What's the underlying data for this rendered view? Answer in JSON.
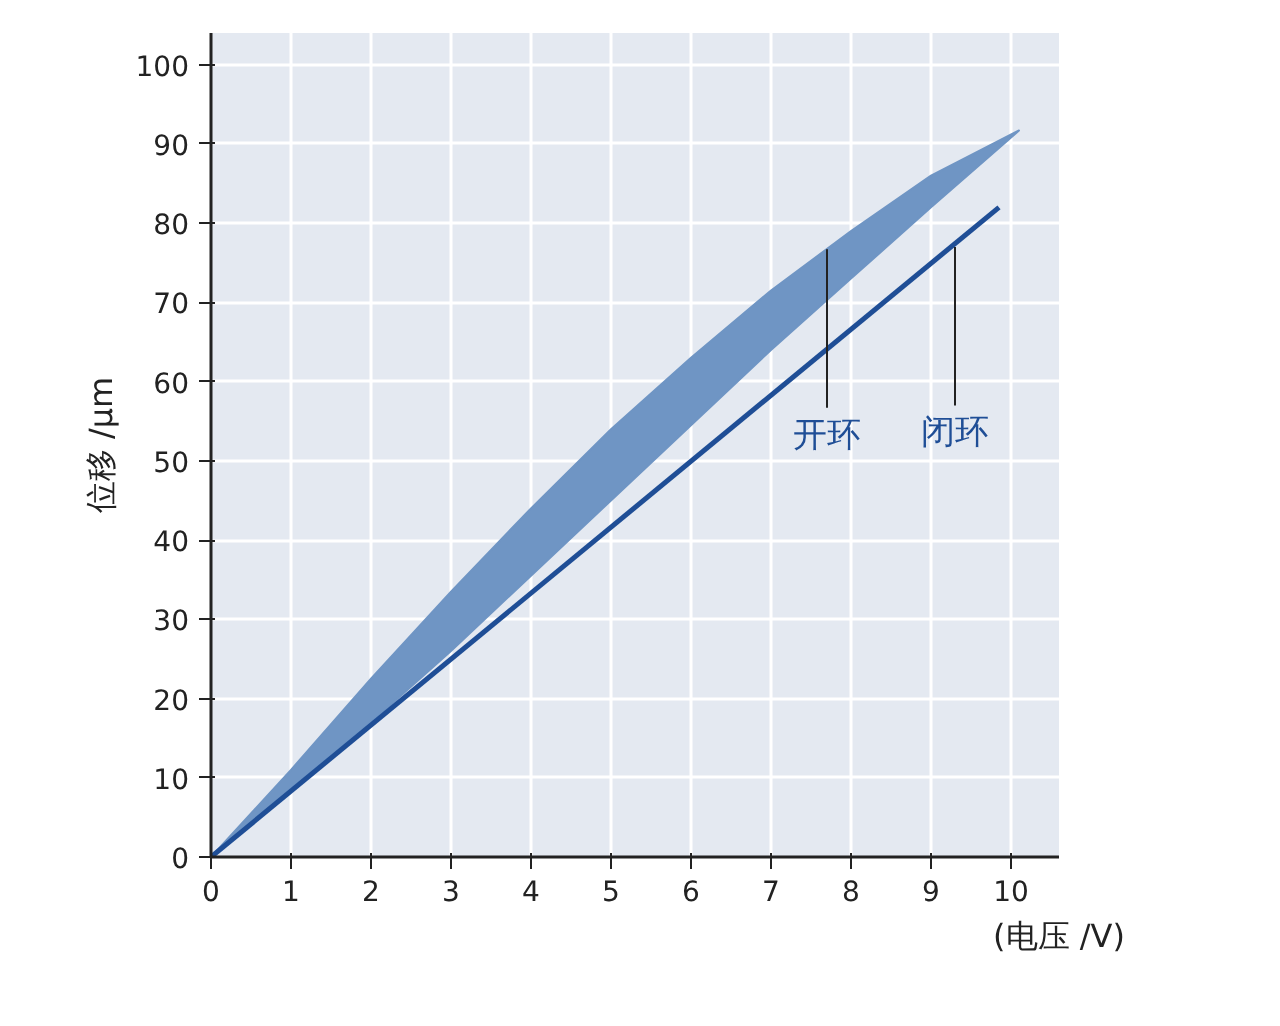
{
  "chart_data": {
    "type": "area",
    "xlabel": "(电压 /V)",
    "ylabel": "位移 /μm",
    "xlim": [
      0,
      10.6
    ],
    "ylim": [
      0,
      104
    ],
    "xticks": [
      0,
      1,
      2,
      3,
      4,
      5,
      6,
      7,
      8,
      9,
      10
    ],
    "yticks": [
      0,
      10,
      20,
      30,
      40,
      50,
      60,
      70,
      80,
      90,
      100
    ],
    "grid": true,
    "series": [
      {
        "color": "#6f95c4",
        "x": [
          0,
          1,
          2,
          3,
          4,
          5,
          6,
          7,
          8,
          9,
          10.1,
          9,
          8,
          7,
          6,
          5,
          4,
          3,
          2,
          1,
          0
        ],
        "values": [
          0,
          11,
          22.5,
          33.5,
          44,
          54,
          63,
          71.5,
          79,
          86,
          91.7,
          82,
          73,
          64,
          54.5,
          45,
          35.5,
          26,
          17,
          8.5,
          0
        ]
      },
      {
        "type": "line",
        "color": "#1f4e96",
        "x": [
          0,
          9.85
        ],
        "values": [
          0,
          82
        ]
      }
    ],
    "annotations": [
      {
        "text": "开环",
        "x": 7.7,
        "y": 76.7
      },
      {
        "text": "闭环",
        "x": 9.3,
        "y": 77
      }
    ]
  }
}
